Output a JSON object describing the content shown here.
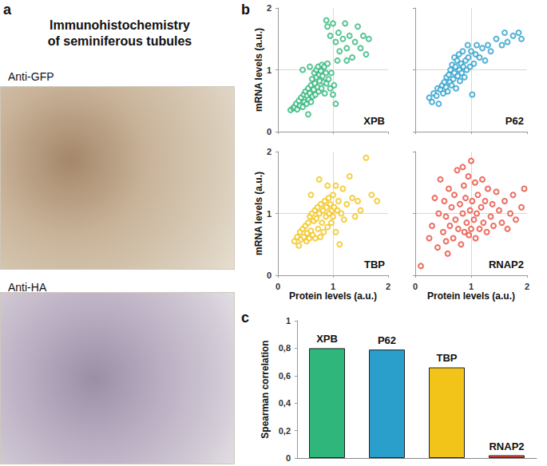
{
  "figure": {
    "panel_labels": [
      "a",
      "b",
      "c"
    ],
    "image_panel": {
      "title": "Immunohistochemistry\nof seminiferous tubules",
      "images": [
        "Anti-GFP",
        "Anti-HA"
      ]
    }
  },
  "chart_data": [
    {
      "type": "scatter",
      "title": "XPB",
      "y_label": "mRNA levels (a.u.)",
      "color": "#2fb67a",
      "marker": "open_circle",
      "xlim": [
        0,
        2
      ],
      "ylim": [
        0,
        2
      ],
      "xticks": [
        0,
        1,
        2
      ],
      "yticks": [
        0,
        1,
        2
      ],
      "grid": true,
      "tick_labels": "y",
      "x": [
        0.23,
        0.28,
        0.3,
        0.33,
        0.35,
        0.38,
        0.4,
        0.42,
        0.45,
        0.47,
        0.48,
        0.5,
        0.52,
        0.53,
        0.55,
        0.56,
        0.58,
        0.6,
        0.6,
        0.62,
        0.63,
        0.65,
        0.66,
        0.67,
        0.68,
        0.7,
        0.7,
        0.72,
        0.73,
        0.74,
        0.75,
        0.76,
        0.78,
        0.79,
        0.8,
        0.81,
        0.83,
        0.84,
        0.85,
        0.87,
        0.88,
        0.9,
        0.92,
        0.95,
        0.97,
        1.0,
        1.02,
        1.05,
        0.55,
        0.45,
        0.58,
        0.9,
        0.88,
        0.95,
        1.0,
        1.05,
        1.1,
        1.12,
        1.18,
        1.22,
        1.25,
        1.3,
        1.35,
        1.4,
        1.45,
        1.5,
        1.55,
        1.6,
        1.65,
        1.25,
        1.08
      ],
      "values": [
        0.35,
        0.38,
        0.4,
        0.45,
        0.36,
        0.5,
        0.42,
        0.55,
        0.4,
        0.6,
        0.48,
        0.65,
        0.45,
        0.58,
        0.7,
        0.52,
        0.62,
        0.75,
        0.48,
        0.85,
        0.57,
        0.68,
        0.95,
        0.78,
        0.6,
        1.0,
        0.88,
        0.72,
        1.05,
        0.65,
        0.92,
        0.82,
        0.98,
        0.7,
        1.08,
        0.9,
        0.8,
        1.05,
        0.62,
        0.95,
        0.78,
        1.1,
        0.85,
        0.7,
        0.95,
        0.6,
        0.75,
        0.45,
        0.28,
        1.0,
        1.05,
        1.7,
        1.8,
        1.55,
        1.75,
        1.45,
        1.6,
        1.3,
        1.5,
        1.75,
        1.35,
        1.55,
        1.2,
        1.45,
        1.7,
        1.35,
        1.55,
        1.25,
        1.5,
        1.15,
        1.15
      ]
    },
    {
      "type": "scatter",
      "title": "P62",
      "color": "#2b9fcc",
      "marker": "open_circle",
      "xlim": [
        0,
        2
      ],
      "ylim": [
        0,
        2
      ],
      "xticks": [
        0,
        1,
        2
      ],
      "yticks": [
        0,
        1,
        2
      ],
      "grid": true,
      "tick_labels": false,
      "x": [
        0.25,
        0.3,
        0.33,
        0.38,
        0.4,
        0.42,
        0.45,
        0.48,
        0.5,
        0.52,
        0.55,
        0.56,
        0.58,
        0.6,
        0.62,
        0.63,
        0.65,
        0.66,
        0.68,
        0.7,
        0.7,
        0.72,
        0.73,
        0.75,
        0.76,
        0.78,
        0.79,
        0.8,
        0.82,
        0.83,
        0.85,
        0.86,
        0.88,
        0.9,
        0.92,
        0.94,
        0.95,
        0.98,
        1.0,
        1.02,
        1.05,
        1.08,
        1.1,
        1.15,
        1.2,
        1.25,
        1.3,
        1.35,
        1.45,
        1.55,
        1.6,
        1.75,
        1.85,
        1.9,
        1.65
      ],
      "values": [
        0.55,
        0.48,
        0.62,
        0.58,
        0.7,
        0.45,
        0.68,
        0.75,
        0.62,
        0.8,
        0.72,
        0.88,
        0.65,
        0.92,
        0.8,
        1.0,
        0.75,
        1.08,
        0.85,
        1.2,
        0.95,
        1.05,
        0.7,
        1.15,
        0.9,
        1.25,
        1.0,
        0.82,
        1.1,
        0.95,
        1.3,
        1.05,
        0.88,
        1.15,
        1.0,
        1.4,
        1.2,
        1.05,
        1.3,
        0.6,
        1.1,
        1.25,
        1.4,
        1.2,
        1.35,
        1.15,
        1.4,
        1.3,
        1.5,
        1.4,
        1.6,
        1.55,
        1.6,
        1.5,
        1.45
      ]
    },
    {
      "type": "scatter",
      "title": "TBP",
      "x_label": "Protein levels (a.u.)",
      "y_label": "mRNA levels (a.u.)",
      "color": "#f2c318",
      "marker": "open_circle",
      "xlim": [
        0,
        2
      ],
      "ylim": [
        0,
        2
      ],
      "xticks": [
        0,
        1,
        2
      ],
      "yticks": [
        0,
        1,
        2
      ],
      "grid": true,
      "tick_labels": true,
      "x": [
        0.3,
        0.35,
        0.38,
        0.4,
        0.42,
        0.45,
        0.47,
        0.5,
        0.52,
        0.53,
        0.55,
        0.57,
        0.58,
        0.6,
        0.62,
        0.63,
        0.65,
        0.67,
        0.68,
        0.7,
        0.72,
        0.73,
        0.75,
        0.77,
        0.78,
        0.8,
        0.82,
        0.83,
        0.85,
        0.87,
        0.88,
        0.9,
        0.92,
        0.93,
        0.95,
        0.97,
        0.98,
        1.0,
        1.0,
        1.02,
        1.05,
        1.05,
        1.08,
        1.1,
        1.12,
        1.15,
        1.18,
        1.2,
        1.25,
        1.3,
        1.35,
        1.4,
        1.45,
        1.5,
        1.6,
        1.7,
        1.8,
        0.6,
        0.75,
        0.9
      ],
      "values": [
        0.55,
        0.62,
        0.48,
        0.7,
        0.58,
        0.75,
        0.62,
        0.8,
        0.55,
        0.68,
        0.85,
        0.6,
        0.95,
        0.72,
        1.0,
        0.65,
        0.88,
        1.05,
        0.6,
        0.92,
        1.1,
        0.75,
        1.0,
        0.62,
        1.15,
        0.85,
        1.05,
        0.7,
        1.2,
        0.95,
        1.1,
        0.78,
        1.25,
        1.0,
        1.15,
        0.85,
        1.05,
        1.3,
        0.95,
        1.1,
        0.7,
        1.45,
        1.05,
        1.2,
        0.5,
        1.0,
        1.4,
        0.9,
        1.15,
        1.6,
        1.25,
        0.95,
        1.2,
        1.05,
        1.9,
        1.3,
        1.2,
        1.3,
        1.55,
        1.45
      ]
    },
    {
      "type": "scatter",
      "title": "RNAP2",
      "x_label": "Protein levels (a.u.)",
      "color": "#e8483a",
      "marker": "open_circle",
      "xlim": [
        0,
        2
      ],
      "ylim": [
        0,
        2
      ],
      "xticks": [
        0,
        1,
        2
      ],
      "yticks": [
        0,
        1,
        2
      ],
      "grid": true,
      "tick_labels": "x",
      "x": [
        0.1,
        0.25,
        0.3,
        0.35,
        0.4,
        0.42,
        0.45,
        0.5,
        0.52,
        0.55,
        0.58,
        0.6,
        0.62,
        0.65,
        0.68,
        0.7,
        0.72,
        0.75,
        0.77,
        0.8,
        0.82,
        0.85,
        0.87,
        0.88,
        0.9,
        0.92,
        0.95,
        0.96,
        0.98,
        1.0,
        1.0,
        1.02,
        1.05,
        1.07,
        1.08,
        1.1,
        1.12,
        1.15,
        1.18,
        1.2,
        1.22,
        1.25,
        1.28,
        1.3,
        1.35,
        1.38,
        1.4,
        1.45,
        1.5,
        1.55,
        1.6,
        1.65,
        1.7,
        1.75,
        1.8,
        1.9,
        0.55,
        0.85,
        1.95
      ],
      "values": [
        0.15,
        0.6,
        0.8,
        1.25,
        0.45,
        1.0,
        1.55,
        0.7,
        1.2,
        0.95,
        0.35,
        1.4,
        0.8,
        1.1,
        0.6,
        1.3,
        0.9,
        1.7,
        0.75,
        1.15,
        0.5,
        1.0,
        1.45,
        0.7,
        1.25,
        0.85,
        1.6,
        0.65,
        1.05,
        0.75,
        1.85,
        1.2,
        0.9,
        1.5,
        0.6,
        1.0,
        1.3,
        0.75,
        1.1,
        1.55,
        0.85,
        1.2,
        0.7,
        1.4,
        0.95,
        1.15,
        0.8,
        1.35,
        1.05,
        0.85,
        1.2,
        0.75,
        1.0,
        1.3,
        0.9,
        1.1,
        0.55,
        1.75,
        1.4
      ]
    },
    {
      "type": "bar",
      "y_label": "Spearman correlation",
      "categories": [
        "XPB",
        "P62",
        "TBP",
        "RNAP2"
      ],
      "values": [
        0.8,
        0.79,
        0.66,
        0.02
      ],
      "colors": [
        "#2fb67a",
        "#2b9fcc",
        "#f2c318",
        "#e8483a"
      ],
      "ylim": [
        0,
        1
      ],
      "yticks": [
        0,
        {
          "value": 0.2,
          "label": "0,2"
        },
        {
          "value": 0.4,
          "label": "0,4"
        },
        {
          "value": 0.6,
          "label": "0,6"
        },
        {
          "value": 0.8,
          "label": "0,8"
        },
        1
      ],
      "grid": false,
      "tick_labels": "y"
    }
  ]
}
